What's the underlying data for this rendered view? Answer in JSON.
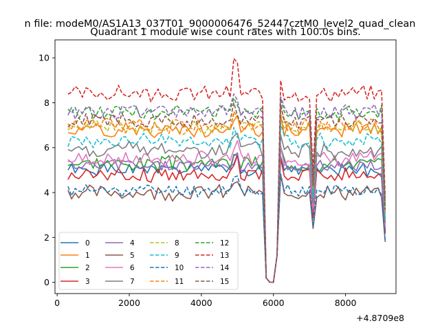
{
  "chart_data": {
    "type": "line",
    "suptitle": "n file: modeM0/AS1A13_037T01_9000006476_52447cztM0_level2_quad_clean",
    "title": "Quadrant 1 module wise count rates with 100.0s bins.",
    "xlabel": "",
    "ylabel": "",
    "x_offset_label": "+4.8709e8",
    "xlim": [
      -60,
      9400
    ],
    "ylim": [
      -0.5,
      10.8
    ],
    "xticks": [
      0,
      2000,
      4000,
      6000,
      8000
    ],
    "xtick_labels": [
      "0",
      "2000",
      "4000",
      "6000",
      "8000"
    ],
    "yticks": [
      0,
      2,
      4,
      6,
      8,
      10
    ],
    "ytick_labels": [
      "0",
      "2",
      "4",
      "6",
      "8",
      "10"
    ],
    "x_start": 300,
    "x_step": 100,
    "x_end": 9100,
    "legend_position": "lower-left",
    "series": [
      {
        "name": "0",
        "style": "solid",
        "color": "#1f77b4",
        "base": 5.0,
        "amp": 0.25,
        "seed": 1
      },
      {
        "name": "1",
        "style": "solid",
        "color": "#ff7f0e",
        "base": 6.8,
        "amp": 0.3,
        "seed": 2
      },
      {
        "name": "2",
        "style": "solid",
        "color": "#2ca02c",
        "base": 5.3,
        "amp": 0.3,
        "seed": 3
      },
      {
        "name": "3",
        "style": "solid",
        "color": "#d62728",
        "base": 4.8,
        "amp": 0.3,
        "seed": 4
      },
      {
        "name": "4",
        "style": "solid",
        "color": "#9467bd",
        "base": 5.2,
        "amp": 0.25,
        "seed": 5
      },
      {
        "name": "5",
        "style": "solid",
        "color": "#8c564b",
        "base": 4.0,
        "amp": 0.3,
        "seed": 6
      },
      {
        "name": "6",
        "style": "solid",
        "color": "#e377c2",
        "base": 5.5,
        "amp": 0.3,
        "seed": 7
      },
      {
        "name": "7",
        "style": "solid",
        "color": "#7f7f7f",
        "base": 5.9,
        "amp": 0.35,
        "seed": 8
      },
      {
        "name": "8",
        "style": "dashed",
        "color": "#bcbd22",
        "base": 6.9,
        "amp": 0.3,
        "seed": 9
      },
      {
        "name": "9",
        "style": "dashed",
        "color": "#17becf",
        "base": 6.3,
        "amp": 0.3,
        "seed": 10
      },
      {
        "name": "10",
        "style": "dashed",
        "color": "#1f77b4",
        "base": 4.1,
        "amp": 0.25,
        "seed": 11
      },
      {
        "name": "11",
        "style": "dashed",
        "color": "#ff7f0e",
        "base": 7.0,
        "amp": 0.3,
        "seed": 12
      },
      {
        "name": "12",
        "style": "dashed",
        "color": "#2ca02c",
        "base": 7.6,
        "amp": 0.3,
        "seed": 13
      },
      {
        "name": "13",
        "style": "dashed",
        "color": "#d62728",
        "base": 8.4,
        "amp": 0.3,
        "seed": 14
      },
      {
        "name": "14",
        "style": "dashed",
        "color": "#9467bd",
        "base": 7.6,
        "amp": 0.3,
        "seed": 15
      },
      {
        "name": "15",
        "style": "dashed",
        "color": "#8c564b",
        "base": 7.2,
        "amp": 0.3,
        "seed": 16
      }
    ]
  }
}
